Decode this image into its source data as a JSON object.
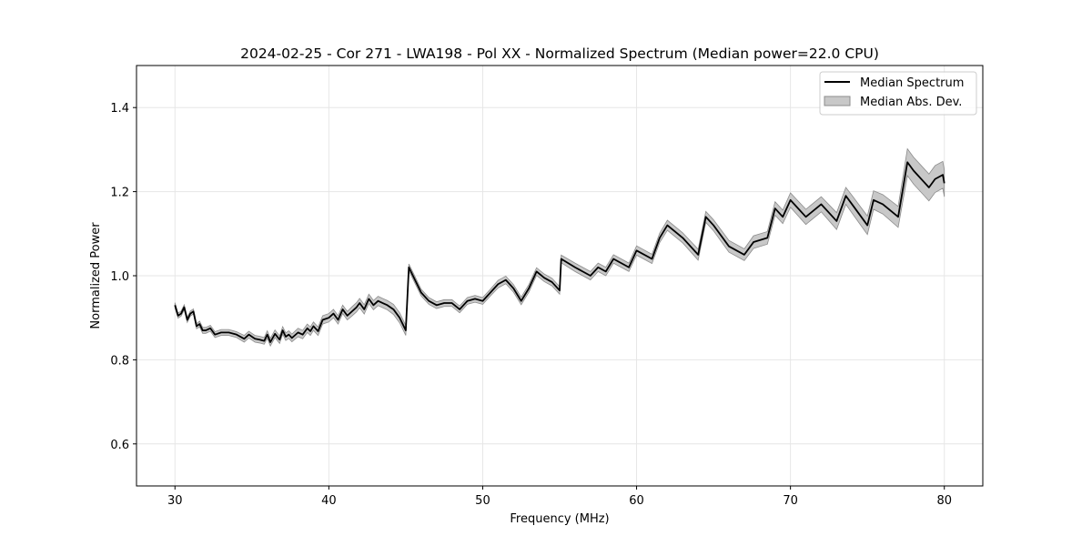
{
  "chart_data": {
    "type": "line",
    "title": "2024-02-25 - Cor 271 - LWA198 - Pol XX - Normalized Spectrum (Median power=22.0 CPU)",
    "xlabel": "Frequency (MHz)",
    "ylabel": "Normalized Power",
    "xlim": [
      27.5,
      82.5
    ],
    "ylim": [
      0.5,
      1.5
    ],
    "xticks": [
      30,
      40,
      50,
      60,
      70,
      80
    ],
    "yticks": [
      0.6,
      0.8,
      1.0,
      1.2,
      1.4
    ],
    "xtick_labels": [
      "30",
      "40",
      "50",
      "60",
      "70",
      "80"
    ],
    "ytick_labels": [
      "0.6",
      "0.8",
      "1.0",
      "1.2",
      "1.4"
    ],
    "grid": true,
    "legend_position": "top-right",
    "colors": {
      "line": "#000000",
      "band": "#c8c8c8",
      "band_edge": "#8c8c8c",
      "grid": "#e6e6e6"
    },
    "series": [
      {
        "name": "Median Spectrum",
        "x": [
          30.0,
          30.2,
          30.4,
          30.6,
          30.8,
          31.0,
          31.2,
          31.4,
          31.6,
          31.8,
          32.0,
          32.3,
          32.6,
          33.0,
          33.5,
          34.0,
          34.5,
          34.8,
          35.0,
          35.2,
          35.5,
          35.8,
          36.0,
          36.2,
          36.5,
          36.8,
          37.0,
          37.2,
          37.4,
          37.6,
          38.0,
          38.3,
          38.6,
          38.8,
          39.0,
          39.3,
          39.6,
          40.0,
          40.3,
          40.6,
          40.9,
          41.2,
          41.5,
          41.8,
          42.0,
          42.3,
          42.6,
          42.9,
          43.2,
          43.5,
          43.8,
          44.2,
          44.6,
          45.0,
          45.2,
          45.6,
          46.0,
          46.5,
          47.0,
          47.5,
          48.0,
          48.5,
          49.0,
          49.5,
          50.0,
          50.5,
          51.0,
          51.5,
          52.0,
          52.5,
          53.0,
          53.5,
          54.0,
          54.5,
          55.0,
          55.1,
          56.0,
          56.5,
          57.0,
          57.5,
          58.0,
          58.5,
          59.0,
          59.5,
          60.0,
          61.0,
          61.5,
          62.0,
          63.0,
          64.0,
          64.5,
          65.0,
          66.0,
          67.0,
          67.6,
          68.5,
          69.0,
          69.5,
          70.0,
          71.0,
          72.0,
          72.5,
          73.0,
          73.6,
          74.0,
          75.0,
          75.4,
          76.0,
          77.0,
          77.6,
          78.0,
          79.0,
          79.4,
          79.9,
          80.0
        ],
        "y": [
          0.93,
          0.905,
          0.91,
          0.925,
          0.895,
          0.91,
          0.915,
          0.88,
          0.885,
          0.87,
          0.87,
          0.875,
          0.86,
          0.865,
          0.865,
          0.86,
          0.85,
          0.86,
          0.855,
          0.85,
          0.848,
          0.845,
          0.86,
          0.842,
          0.862,
          0.848,
          0.87,
          0.855,
          0.86,
          0.852,
          0.865,
          0.86,
          0.875,
          0.868,
          0.88,
          0.868,
          0.895,
          0.9,
          0.91,
          0.895,
          0.92,
          0.905,
          0.915,
          0.925,
          0.935,
          0.92,
          0.945,
          0.93,
          0.94,
          0.935,
          0.93,
          0.92,
          0.9,
          0.87,
          1.02,
          0.99,
          0.96,
          0.94,
          0.93,
          0.935,
          0.935,
          0.92,
          0.94,
          0.945,
          0.94,
          0.96,
          0.98,
          0.99,
          0.97,
          0.94,
          0.97,
          1.01,
          0.995,
          0.985,
          0.965,
          1.04,
          1.02,
          1.01,
          1.0,
          1.02,
          1.01,
          1.04,
          1.03,
          1.02,
          1.06,
          1.04,
          1.09,
          1.12,
          1.09,
          1.05,
          1.14,
          1.12,
          1.07,
          1.05,
          1.08,
          1.09,
          1.16,
          1.14,
          1.18,
          1.14,
          1.17,
          1.15,
          1.13,
          1.19,
          1.17,
          1.12,
          1.18,
          1.17,
          1.14,
          1.27,
          1.25,
          1.21,
          1.23,
          1.24,
          1.22
        ]
      },
      {
        "name": "Median Abs. Dev.",
        "band_halfwidth": [
          0.006,
          0.006,
          0.006,
          0.006,
          0.006,
          0.006,
          0.006,
          0.006,
          0.007,
          0.007,
          0.007,
          0.007,
          0.007,
          0.007,
          0.007,
          0.007,
          0.008,
          0.008,
          0.008,
          0.008,
          0.008,
          0.008,
          0.009,
          0.009,
          0.009,
          0.009,
          0.009,
          0.009,
          0.009,
          0.009,
          0.01,
          0.01,
          0.01,
          0.01,
          0.01,
          0.01,
          0.01,
          0.01,
          0.01,
          0.01,
          0.01,
          0.01,
          0.011,
          0.011,
          0.011,
          0.011,
          0.011,
          0.011,
          0.011,
          0.011,
          0.011,
          0.012,
          0.012,
          0.012,
          0.008,
          0.008,
          0.008,
          0.008,
          0.008,
          0.008,
          0.008,
          0.008,
          0.008,
          0.008,
          0.008,
          0.008,
          0.009,
          0.009,
          0.009,
          0.009,
          0.009,
          0.009,
          0.009,
          0.009,
          0.009,
          0.009,
          0.01,
          0.01,
          0.01,
          0.01,
          0.01,
          0.01,
          0.01,
          0.01,
          0.011,
          0.011,
          0.011,
          0.012,
          0.012,
          0.013,
          0.013,
          0.013,
          0.014,
          0.014,
          0.015,
          0.015,
          0.016,
          0.016,
          0.017,
          0.018,
          0.018,
          0.019,
          0.02,
          0.02,
          0.021,
          0.022,
          0.022,
          0.023,
          0.025,
          0.032,
          0.032,
          0.032,
          0.032,
          0.032,
          0.032
        ]
      }
    ]
  }
}
